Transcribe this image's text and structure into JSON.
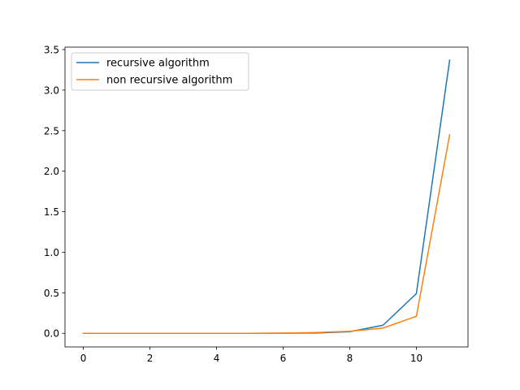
{
  "chart_data": {
    "type": "line",
    "title": "",
    "xlabel": "",
    "ylabel": "",
    "xlim": [
      -0.55,
      11.55
    ],
    "ylim": [
      -0.168,
      3.53
    ],
    "xticks": [
      0,
      2,
      4,
      6,
      8,
      10
    ],
    "xtick_labels": [
      "0",
      "2",
      "4",
      "6",
      "8",
      "10"
    ],
    "yticks": [
      0.0,
      0.5,
      1.0,
      1.5,
      2.0,
      2.5,
      3.0,
      3.5
    ],
    "ytick_labels": [
      "0.0",
      "0.5",
      "1.0",
      "1.5",
      "2.0",
      "2.5",
      "3.0",
      "3.5"
    ],
    "grid": false,
    "legend_position": "upper-left",
    "x": [
      0,
      1,
      2,
      3,
      4,
      5,
      6,
      7,
      8,
      9,
      10,
      11
    ],
    "series": [
      {
        "name": "recursive algorithm",
        "color": "#1f77b4",
        "values": [
          0.0,
          0.0,
          0.0,
          0.0,
          0.0,
          0.0,
          0.001,
          0.004,
          0.02,
          0.1,
          0.49,
          3.37
        ]
      },
      {
        "name": "non recursive algorithm",
        "color": "#ff7f0e",
        "values": [
          0.0,
          0.0,
          0.0,
          0.0,
          0.0,
          0.0,
          0.002,
          0.01,
          0.025,
          0.065,
          0.21,
          2.45
        ]
      }
    ]
  }
}
